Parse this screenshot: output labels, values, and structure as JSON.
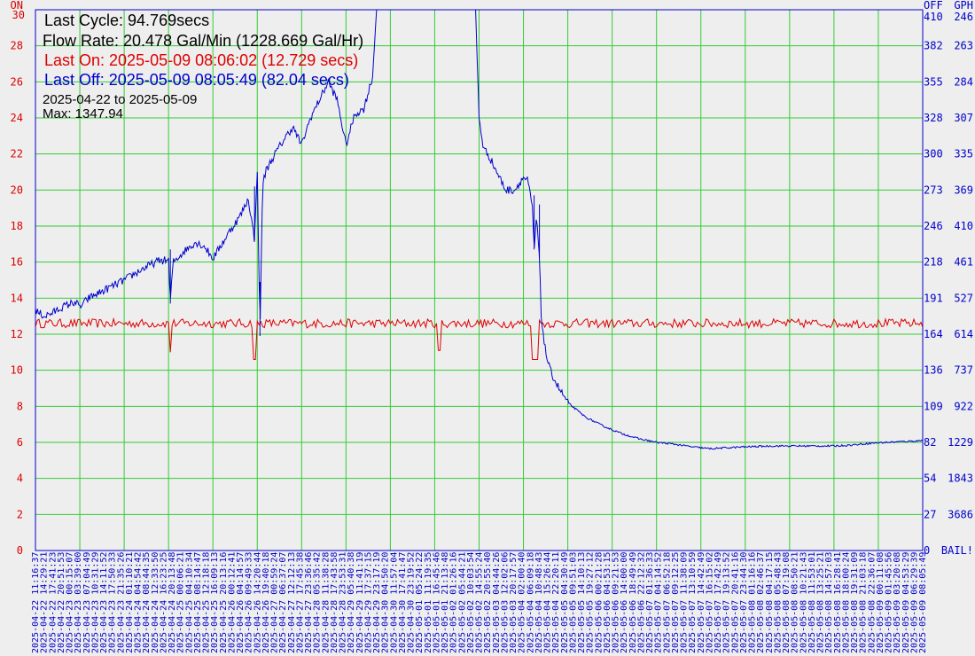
{
  "info": {
    "last_cycle": "Last Cycle: 94.769secs",
    "flow_rate": "Flow Rate: 20.478 Gal/Min (1228.669 Gal/Hr)",
    "last_on": "Last On: 2025-05-09 08:06:02 (12.729 secs)",
    "last_off": "Last Off: 2025-05-09 08:05:49 (82.04 secs)",
    "date_range": "2025-04-22 to 2025-05-09",
    "max": "Max: 1347.94"
  },
  "axis": {
    "left_header": "ON",
    "off_header": "OFF",
    "gph_header": "GPH",
    "bail_label": "BAIL!"
  },
  "colors": {
    "on_series": "#dd0000",
    "off_series": "#0000cc",
    "grid": "#33cc33",
    "frame": "#0000cc",
    "background": "#eeeeee"
  },
  "chart_data": {
    "type": "line",
    "left_axis": {
      "range": [
        0,
        30
      ],
      "ticks": [
        "0",
        "2",
        "4",
        "6",
        "8",
        "10",
        "12",
        "14",
        "16",
        "18",
        "20",
        "22",
        "24",
        "26",
        "28",
        "30"
      ]
    },
    "off_axis_ticks": [
      "0",
      "27",
      "54",
      "82",
      "109",
      "136",
      "164",
      "191",
      "218",
      "246",
      "273",
      "300",
      "328",
      "355",
      "382",
      "410"
    ],
    "gph_axis_ticks": [
      "BAIL!",
      "3686",
      "1843",
      "1229",
      "922",
      "737",
      "614",
      "527",
      "461",
      "410",
      "369",
      "335",
      "307",
      "284",
      "263",
      "246"
    ],
    "grid": true,
    "x_tick_labels": [
      "2025-04-22 11:16:37",
      "2025-04-22 14:29:21",
      "2025-04-22 17:41:23",
      "2025-04-22 20:51:53",
      "2025-04-23 00:15:07",
      "2025-04-23 03:39:00",
      "2025-04-23 07:04:49",
      "2025-04-23 10:31:29",
      "2025-04-23 14:11:52",
      "2025-04-23 17:50:33",
      "2025-04-23 21:35:26",
      "2025-04-24 01:10:21",
      "2025-04-24 04:54:42",
      "2025-04-24 08:44:35",
      "2025-04-24 12:33:50",
      "2025-04-24 16:23:25",
      "2025-04-24 20:13:48",
      "2025-04-25 00:06:21",
      "2025-04-25 04:10:34",
      "2025-04-25 08:14:47",
      "2025-04-25 12:18:18",
      "2025-04-25 16:09:13",
      "2025-04-25 20:13:16",
      "2025-04-26 00:12:41",
      "2025-04-26 04:14:57",
      "2025-04-26 09:49:33",
      "2025-04-26 14:20:44",
      "2025-04-26 19:40:18",
      "2025-04-27 00:59:24",
      "2025-04-27 06:37:07",
      "2025-04-27 12:12:13",
      "2025-04-27 17:45:38",
      "2025-04-27 23:36:46",
      "2025-04-28 05:35:42",
      "2025-04-28 11:38:28",
      "2025-04-28 17:43:58",
      "2025-04-28 23:53:31",
      "2025-04-29 05:40:38",
      "2025-04-29 11:41:19",
      "2025-04-29 17:37:15",
      "2025-04-29 23:17:19",
      "2025-04-30 04:50:20",
      "2025-04-30 11:57:04",
      "2025-04-30 17:41:47",
      "2025-04-30 23:19:52",
      "2025-05-01 05:24:22",
      "2025-05-01 11:19:35",
      "2025-05-01 16:45:46",
      "2025-05-01 21:13:48",
      "2025-05-02 01:26:16",
      "2025-05-02 05:44:21",
      "2025-05-02 10:03:54",
      "2025-05-02 14:55:24",
      "2025-05-02 20:55:40",
      "2025-05-03 04:44:26",
      "2025-05-03 12:02:06",
      "2025-05-03 20:17:57",
      "2025-05-04 02:00:40",
      "2025-05-04 06:09:18",
      "2025-05-04 10:48:43",
      "2025-05-04 15:26:44",
      "2025-05-04 22:20:11",
      "2025-05-05 04:30:49",
      "2025-05-05 09:51:03",
      "2025-05-05 14:10:13",
      "2025-05-05 19:27:12",
      "2025-05-06 00:21:28",
      "2025-05-06 04:53:15",
      "2025-05-06 09:21:53",
      "2025-05-06 14:00:00",
      "2025-05-06 18:49:49",
      "2025-05-06 22:12:32",
      "2025-05-07 01:36:33",
      "2025-05-07 04:14:52",
      "2025-05-07 06:52:18",
      "2025-05-07 09:12:25",
      "2025-05-07 11:38:09",
      "2025-05-07 13:10:59",
      "2025-05-07 14:42:49",
      "2025-05-07 16:15:02",
      "2025-05-07 17:42:49",
      "2025-05-07 19:13:52",
      "2025-05-07 20:41:16",
      "2025-05-07 23:44:30",
      "2025-05-08 01:16:16",
      "2025-05-08 02:46:37",
      "2025-05-08 04:17:15",
      "2025-05-08 05:48:43",
      "2025-05-08 07:19:08",
      "2025-05-08 08:50:21",
      "2025-05-08 10:21:43",
      "2025-05-08 11:53:01",
      "2025-05-08 13:25:21",
      "2025-05-08 14:57:03",
      "2025-05-08 16:28:41",
      "2025-05-08 18:00:24",
      "2025-05-08 19:31:09",
      "2025-05-08 21:03:18",
      "2025-05-08 22:36:07",
      "2025-05-09 00:11:08",
      "2025-05-09 01:45:56",
      "2025-05-09 03:20:08",
      "2025-05-09 04:53:29",
      "2025-05-09 06:29:39",
      "2025-05-09 08:05:49"
    ],
    "series": [
      {
        "key": "on",
        "baseline": 12.6,
        "noise": 0.25,
        "dips": [
          [
            0.152,
            11.0
          ],
          [
            0.247,
            10.6
          ],
          [
            0.455,
            11.1
          ],
          [
            0.561,
            10.6
          ],
          [
            0.565,
            10.6
          ]
        ]
      },
      {
        "key": "off",
        "values": [
          [
            0.0,
            13.3
          ],
          [
            0.01,
            13.0
          ],
          [
            0.02,
            13.2
          ],
          [
            0.03,
            13.5
          ],
          [
            0.045,
            13.8
          ],
          [
            0.05,
            13.5
          ],
          [
            0.06,
            14.0
          ],
          [
            0.08,
            14.5
          ],
          [
            0.1,
            15.0
          ],
          [
            0.12,
            15.6
          ],
          [
            0.14,
            16.1
          ],
          [
            0.15,
            16.1
          ],
          [
            0.152,
            13.7
          ],
          [
            0.155,
            16.0
          ],
          [
            0.17,
            16.7
          ],
          [
            0.18,
            17.1
          ],
          [
            0.19,
            16.9
          ],
          [
            0.2,
            16.2
          ],
          [
            0.21,
            17.0
          ],
          [
            0.22,
            17.8
          ],
          [
            0.23,
            18.5
          ],
          [
            0.24,
            19.5
          ],
          [
            0.247,
            17.2
          ],
          [
            0.25,
            21.2
          ],
          [
            0.253,
            11.9
          ],
          [
            0.256,
            20.3
          ],
          [
            0.26,
            21.1
          ],
          [
            0.27,
            22.0
          ],
          [
            0.28,
            22.8
          ],
          [
            0.29,
            23.5
          ],
          [
            0.3,
            22.5
          ],
          [
            0.31,
            24.0
          ],
          [
            0.32,
            25.0
          ],
          [
            0.33,
            26.0
          ],
          [
            0.34,
            25.0
          ],
          [
            0.35,
            22.5
          ],
          [
            0.36,
            24.2
          ],
          [
            0.37,
            24.5
          ],
          [
            0.38,
            26.3
          ],
          [
            0.385,
            30.5
          ],
          [
            0.39,
            31.5
          ],
          [
            0.495,
            31.5
          ],
          [
            0.5,
            24.0
          ],
          [
            0.505,
            22.3
          ],
          [
            0.51,
            22.0
          ],
          [
            0.52,
            21.0
          ],
          [
            0.53,
            20.0
          ],
          [
            0.54,
            20.0
          ],
          [
            0.55,
            20.7
          ],
          [
            0.555,
            20.5
          ],
          [
            0.56,
            19.0
          ],
          [
            0.562,
            16.7
          ],
          [
            0.565,
            18.5
          ],
          [
            0.568,
            16.2
          ],
          [
            0.57,
            13.0
          ],
          [
            0.575,
            11.0
          ],
          [
            0.58,
            10.0
          ],
          [
            0.59,
            9.0
          ],
          [
            0.6,
            8.2
          ],
          [
            0.62,
            7.4
          ],
          [
            0.64,
            6.9
          ],
          [
            0.66,
            6.5
          ],
          [
            0.68,
            6.2
          ],
          [
            0.7,
            6.0
          ],
          [
            0.72,
            5.9
          ],
          [
            0.74,
            5.75
          ],
          [
            0.76,
            5.65
          ],
          [
            0.78,
            5.7
          ],
          [
            0.8,
            5.75
          ],
          [
            0.83,
            5.8
          ],
          [
            0.86,
            5.8
          ],
          [
            0.9,
            5.8
          ],
          [
            0.92,
            5.85
          ],
          [
            0.94,
            5.95
          ],
          [
            0.96,
            6.0
          ],
          [
            0.98,
            6.05
          ],
          [
            1.0,
            6.1
          ]
        ]
      }
    ]
  }
}
